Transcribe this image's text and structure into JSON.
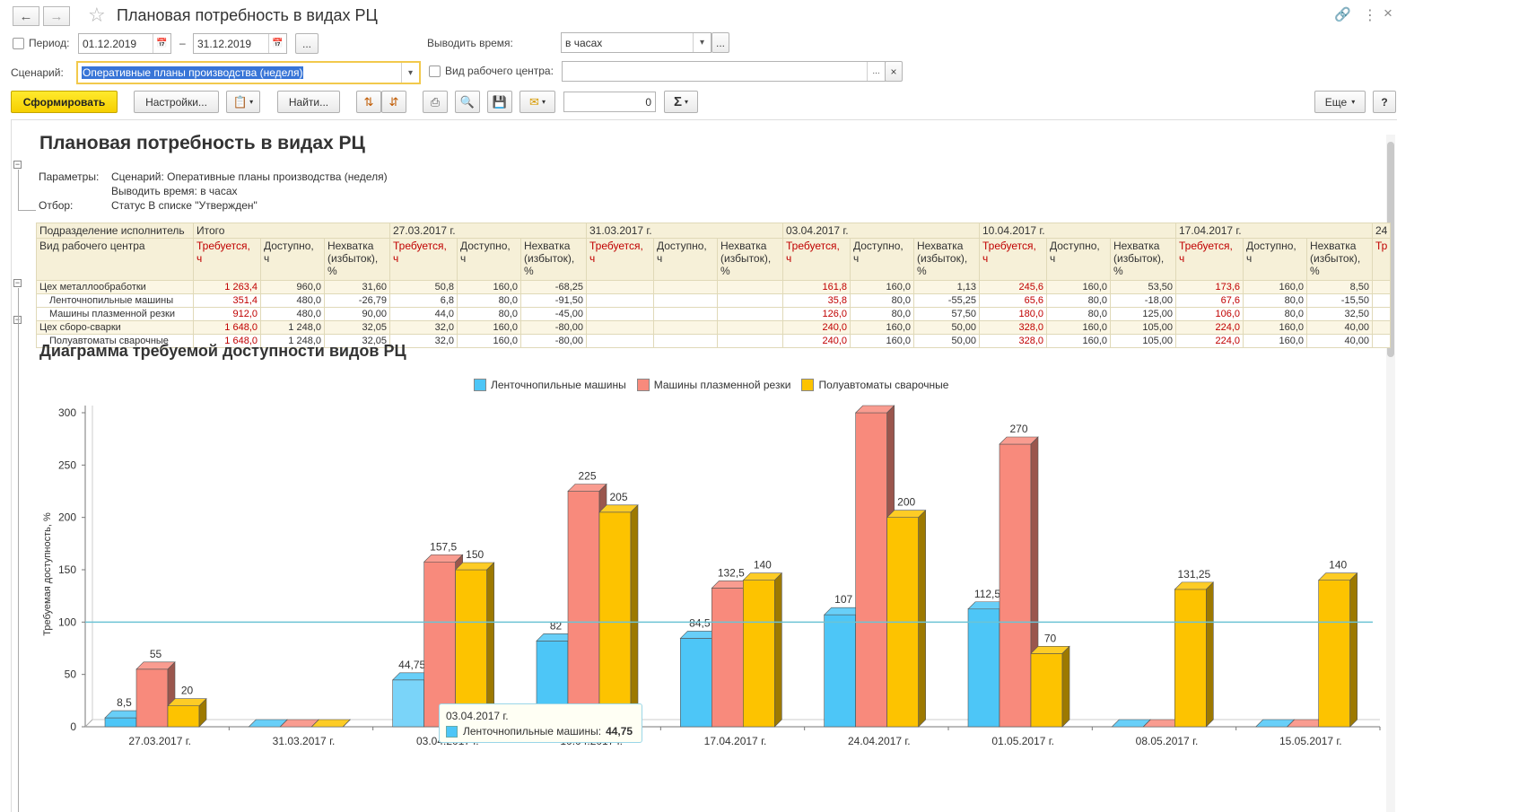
{
  "window": {
    "title": "Плановая потребность в видах РЦ",
    "back_icon": "arrow-left",
    "forward_icon": "arrow-right",
    "favorite_icon": "star",
    "link_icon": "link",
    "menu_icon": "more-vertical",
    "close_icon": "close"
  },
  "form": {
    "period_label": "Период:",
    "date_from": "01.12.2019",
    "dash": "–",
    "date_to": "31.12.2019",
    "dots": "...",
    "output_time_label": "Выводить время:",
    "output_time_value": "в часах",
    "scenario_label": "Сценарий:",
    "scenario_value": "Оперативные планы производства (неделя)",
    "wc_type_label": "Вид рабочего центра:",
    "wc_type_value": "",
    "clear_icon": "×"
  },
  "toolbar": {
    "generate": "Сформировать",
    "settings": "Настройки...",
    "find": "Найти...",
    "counter_value": "0",
    "sum_icon": "Σ",
    "more": "Еще",
    "help": "?"
  },
  "report": {
    "title": "Плановая потребность в видах РЦ",
    "params_label": "Параметры:",
    "param1": "Сценарий: Оперативные планы производства (неделя)",
    "param2": "Выводить время: в часах",
    "filter_label": "Отбор:",
    "filter_value": "Статус В списке \"Утвержден\"",
    "table": {
      "h1": [
        "Подразделение исполнитель",
        "Итого",
        "27.03.2017 г.",
        "31.03.2017 г.",
        "03.04.2017 г.",
        "10.04.2017 г.",
        "17.04.2017 г.",
        "24"
      ],
      "h2_first": "Вид рабочего центра",
      "h2_req": "Требуется, ч",
      "h2_avail": "Доступно, ч",
      "h2_short": "Нехватка (избыток), %",
      "h2_tail": "Тр",
      "rows": [
        {
          "type": "grp",
          "name": "Цех металлообработки",
          "cells": [
            "1 263,4",
            "960,0",
            "31,60",
            "50,8",
            "160,0",
            "-68,25",
            "",
            "",
            "",
            "161,8",
            "160,0",
            "1,13",
            "245,6",
            "160,0",
            "53,50",
            "173,6",
            "160,0",
            "8,50"
          ]
        },
        {
          "type": "sub",
          "name": "Ленточнопильные машины",
          "cells": [
            "351,4",
            "480,0",
            "-26,79",
            "6,8",
            "80,0",
            "-91,50",
            "",
            "",
            "",
            "35,8",
            "80,0",
            "-55,25",
            "65,6",
            "80,0",
            "-18,00",
            "67,6",
            "80,0",
            "-15,50"
          ]
        },
        {
          "type": "sub",
          "name": "Машины плазменной резки",
          "cells": [
            "912,0",
            "480,0",
            "90,00",
            "44,0",
            "80,0",
            "-45,00",
            "",
            "",
            "",
            "126,0",
            "80,0",
            "57,50",
            "180,0",
            "80,0",
            "125,00",
            "106,0",
            "80,0",
            "32,50"
          ]
        },
        {
          "type": "grp",
          "name": "Цех сборо-сварки",
          "cells": [
            "1 648,0",
            "1 248,0",
            "32,05",
            "32,0",
            "160,0",
            "-80,00",
            "",
            "",
            "",
            "240,0",
            "160,0",
            "50,00",
            "328,0",
            "160,0",
            "105,00",
            "224,0",
            "160,0",
            "40,00"
          ]
        },
        {
          "type": "sub",
          "name": "Полуавтоматы сварочные",
          "cells": [
            "1 648,0",
            "1 248,0",
            "32,05",
            "32,0",
            "160,0",
            "-80,00",
            "",
            "",
            "",
            "240,0",
            "160,0",
            "50,00",
            "328,0",
            "160,0",
            "105,00",
            "224,0",
            "160,0",
            "40,00"
          ]
        }
      ]
    }
  },
  "chart_section": {
    "title": "Диаграмма требуемой доступности видов РЦ",
    "tooltip_date": "03.04.2017 г.",
    "tooltip_series": "Ленточнопильные машины:",
    "tooltip_value": "44,75"
  },
  "chart_data": {
    "type": "bar",
    "ylabel": "Требуемая доступность, %",
    "ylim": [
      0,
      300
    ],
    "yticks": [
      0,
      50,
      100,
      150,
      200,
      250,
      300
    ],
    "reference_line": 100,
    "categories": [
      "27.03.2017 г.",
      "31.03.2017 г.",
      "03.04.2017 г.",
      "10.04.2017 г.",
      "17.04.2017 г.",
      "24.04.2017 г.",
      "01.05.2017 г.",
      "08.05.2017 г.",
      "15.05.2017 г."
    ],
    "series": [
      {
        "name": "Ленточнопильные машины",
        "color": "#4dc6f7",
        "values": [
          8.5,
          0,
          44.75,
          82,
          84.5,
          107,
          112.5,
          0,
          0
        ],
        "labels": [
          "8,5",
          "",
          "44,75",
          "82",
          "84,5",
          "107",
          "112,5",
          "",
          ""
        ]
      },
      {
        "name": "Машины плазменной резки",
        "color": "#f88a7c",
        "values": [
          55,
          0,
          157.5,
          225,
          132.5,
          300,
          270,
          0,
          0
        ],
        "labels": [
          "55",
          "",
          "157,5",
          "225",
          "132,5",
          "",
          "270",
          "",
          ""
        ]
      },
      {
        "name": "Полуавтоматы сварочные",
        "color": "#fdc300",
        "values": [
          20,
          0,
          150,
          205,
          140,
          200,
          70,
          131.25,
          140
        ],
        "labels": [
          "20",
          "",
          "150",
          "205",
          "140",
          "200",
          "70",
          "131,25",
          "140"
        ]
      }
    ],
    "legend_position": "top"
  }
}
